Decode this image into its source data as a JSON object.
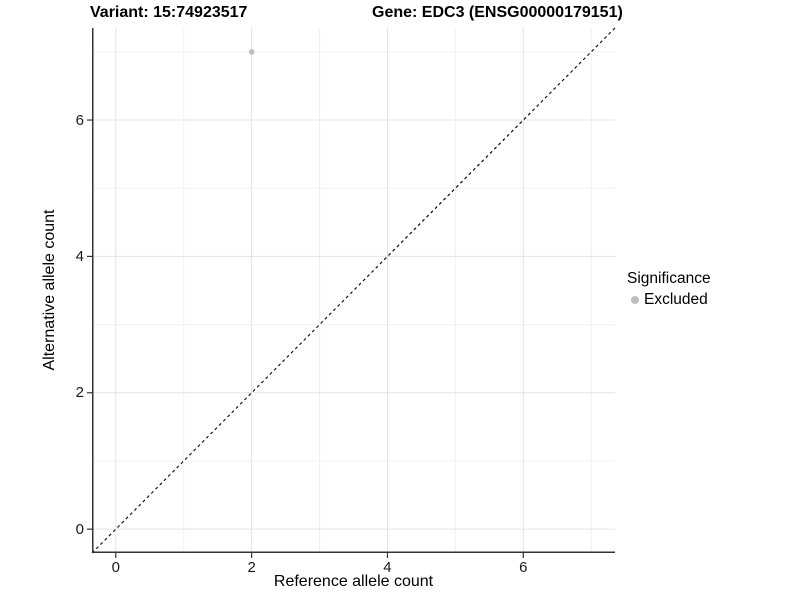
{
  "figure": {
    "titles": {
      "variant": "Variant: 15:74923517",
      "gene": "Gene: EDC3 (ENSG00000179151)"
    }
  },
  "legend": {
    "title": "Significance",
    "items": [
      {
        "label": "Excluded",
        "color": "#bebebe"
      }
    ]
  },
  "chart_data": {
    "type": "scatter",
    "title": "Variant: 15:74923517    Gene: EDC3 (ENSG00000179151)",
    "xlabel": "Reference allele count",
    "ylabel": "Alternative allele count",
    "xlim": [
      -0.35,
      7.35
    ],
    "ylim": [
      -0.35,
      7.35
    ],
    "x_ticks": {
      "values": [
        0,
        2,
        4,
        6
      ],
      "labels": [
        "0",
        "2",
        "4",
        "6"
      ],
      "minor": [
        1,
        3,
        5,
        7
      ]
    },
    "y_ticks": {
      "values": [
        0,
        2,
        4,
        6
      ],
      "labels": [
        "0",
        "2",
        "4",
        "6"
      ],
      "minor": [
        1,
        3,
        5,
        7
      ]
    },
    "grid": {
      "major_color": "#e3e3e3",
      "minor_color": "#f0f0f0",
      "on": true
    },
    "axis_line_color": "#333333",
    "series": [
      {
        "name": "Excluded",
        "color": "#bebebe",
        "point_radius": 2.8,
        "points": [
          [
            2,
            7
          ]
        ]
      }
    ],
    "reference_line": {
      "type": "identity",
      "equation": "y = x",
      "style": "dashed",
      "color": "#000000"
    },
    "legend_position": "right"
  }
}
